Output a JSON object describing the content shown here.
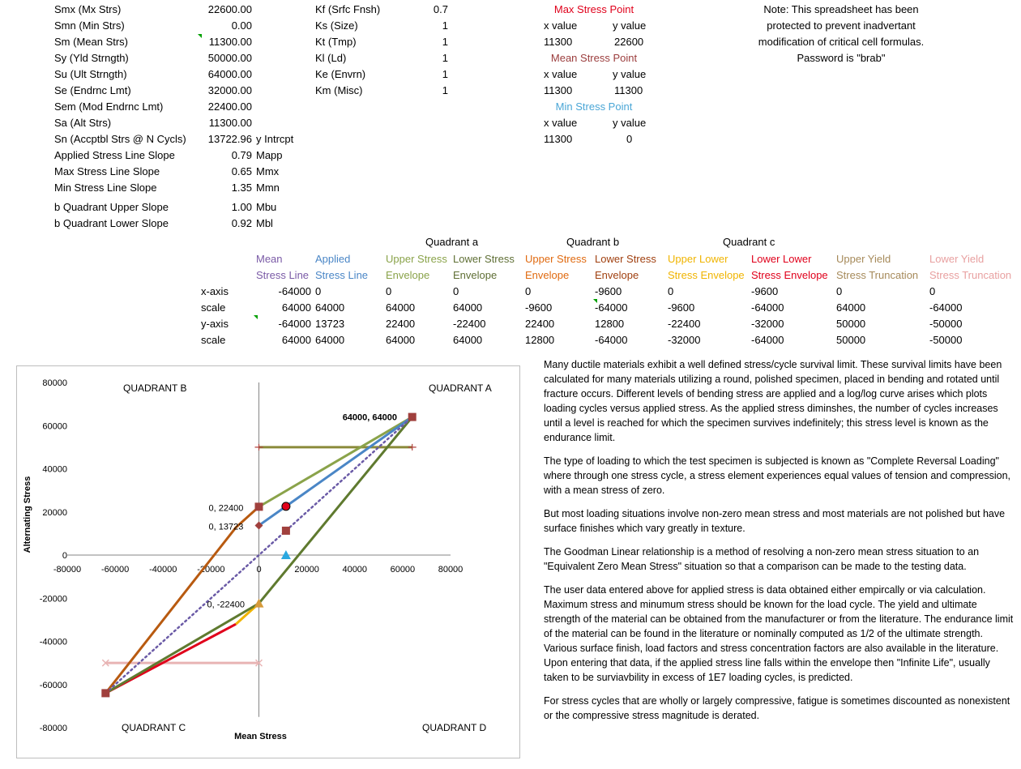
{
  "params_left": [
    {
      "label": "Smx (Mx Strs)",
      "value": "22600.00"
    },
    {
      "label": "Smn (Min Strs)",
      "value": "0.00"
    },
    {
      "label": "Sm (Mean Strs)",
      "value": "11300.00"
    },
    {
      "label": "Sy (Yld Strngth)",
      "value": "50000.00"
    },
    {
      "label": "Su (Ult Strngth)",
      "value": "64000.00"
    },
    {
      "label": "Se (Endrnc Lmt)",
      "value": "32000.00"
    },
    {
      "label": "Sem (Mod Endrnc Lmt)",
      "value": "22400.00"
    },
    {
      "label": "Sa (Alt Strs)",
      "value": "11300.00"
    },
    {
      "label": "Sn (Accptbl Strs @ N  Cycls)",
      "value": "13722.96",
      "suffix": "y Intrcpt"
    }
  ],
  "slopes": [
    {
      "label": "Applied Stress Line Slope",
      "value": "0.79",
      "suffix": "Mapp"
    },
    {
      "label": "Max Stress Line Slope",
      "value": "0.65",
      "suffix": "Mmx"
    },
    {
      "label": "Min Stress Line Slope",
      "value": "1.35",
      "suffix": "Mmn"
    },
    {
      "label": "b Quadrant Upper Slope",
      "value": "1.00",
      "suffix": "Mbu"
    },
    {
      "label": "b Quadrant Lower Slope",
      "value": "0.92",
      "suffix": "Mbl"
    }
  ],
  "factors": [
    {
      "label": "Kf (Srfc Fnsh)",
      "value": "0.7"
    },
    {
      "label": "Ks (Size)",
      "value": "1"
    },
    {
      "label": "Kt (Tmp)",
      "value": "1"
    },
    {
      "label": "Kl (Ld)",
      "value": "1"
    },
    {
      "label": "Ke (Envrn)",
      "value": "1"
    },
    {
      "label": "Km (Misc)",
      "value": "1"
    }
  ],
  "points": {
    "max": {
      "title": "Max Stress Point",
      "x": "11300",
      "y": "22600"
    },
    "mean": {
      "title": "Mean Stress Point",
      "x": "11300",
      "y": "11300"
    },
    "min": {
      "title": "Min Stress Point",
      "x": "11300",
      "y": "0"
    },
    "x_label": "x value",
    "y_label": "y value"
  },
  "note": "Note:  This spreadsheet has been protected to prevent inadvertant modification of critical cell formulas.  Password is \"brab\"",
  "quadrants": {
    "a": "Quadrant a",
    "b": "Quadrant b",
    "c": "Quadrant c"
  },
  "table": {
    "row_labels": [
      "x-axis",
      "scale",
      "y-axis",
      "scale"
    ],
    "columns": [
      {
        "h1": "Mean",
        "h2": "Stress Line",
        "color": "#7a5aa6",
        "vals": [
          "-64000",
          "64000",
          "-64000",
          "64000"
        ]
      },
      {
        "h1": "Applied",
        "h2": "Stress Line",
        "color": "#4a86c6",
        "vals": [
          "0",
          "64000",
          "13723",
          "64000"
        ]
      },
      {
        "h1": "Upper Stress",
        "h2": "Envelope",
        "color": "#8aa34a",
        "vals": [
          "0",
          "64000",
          "22400",
          "64000"
        ]
      },
      {
        "h1": "Lower Stress",
        "h2": "Envelope",
        "color": "#5f6f35",
        "vals": [
          "0",
          "64000",
          "-22400",
          "64000"
        ]
      },
      {
        "h1": "Upper Stress",
        "h2": "Envelope",
        "color": "#e06a10",
        "vals": [
          "0",
          "-9600",
          "22400",
          "12800"
        ]
      },
      {
        "h1": "Lower Stress",
        "h2": "Envelope",
        "color": "#a04010",
        "vals": [
          "-9600",
          "-64000",
          "12800",
          "-64000"
        ]
      },
      {
        "h1": "Upper Lower",
        "h2": "Stress Envelope",
        "color": "#f0b400",
        "vals": [
          "0",
          "-9600",
          "-22400",
          "-32000"
        ]
      },
      {
        "h1": "Lower Lower",
        "h2": "Stress Envelope",
        "color": "#e0001b",
        "vals": [
          "-9600",
          "-64000",
          "-32000",
          "-64000"
        ]
      },
      {
        "h1": "Upper Yield",
        "h2": "Stress Truncation",
        "color": "#a68a5a",
        "vals": [
          "0",
          "64000",
          "50000",
          "50000"
        ]
      },
      {
        "h1": "Lower Yield",
        "h2": "Stress Truncation",
        "color": "#e8a0a0",
        "vals": [
          "0",
          "-64000",
          "-50000",
          "-50000"
        ]
      }
    ]
  },
  "paragraphs": [
    "Many ductile materials exhibit a well defined stress/cycle survival limit.  These survival limits have been calculated for many materials utilizing a round, polished specimen, placed in bending and rotated until fracture occurs.  Different levels of bending stress are applied and a log/log curve arises which plots loading cycles versus applied stress.  As the applied stress diminshes, the number of cycles increases until a level is reached for which the specimen survives indefinitely; this stress level is known as the endurance limit.",
    "The type of loading to which the test specimen is subjected is known as \"Complete Reversal Loading\" where through one stress cycle, a stress element experiences equal values of tension and compression, with a mean stress of zero.",
    "But most loading situations involve non-zero mean stress and most materials are not polished but have surface finishes which vary greatly in texture.",
    "The Goodman Linear relationship is a method of resolving a non-zero mean stress situation to an \"Equivalent Zero Mean  Stress\" situation so that a comparison can be made to the testing data.",
    "The user data entered above for applied stress is data obtained either empircally or via calculation.  Maximum stress and minumum stress should be known for the load cycle.  The yield and ultimate strength of the material can be obtained from the manufacturer or from the literature.  The endurance limit of the material can be found in the literature or nominally computed as 1/2 of the ultimate strength.  Various surface finish, load factors and stress concentration factors are also available in the literature.  Upon entering that data, if the applied stress line falls within the envelope then \"Infinite Life\", usually taken to be surviavbility in excess of 1E7 loading cycles, is predicted.",
    "For stress cycles that are wholly or largely compressive, fatigue is sometimes discounted as nonexistent or the compressive stress magnitude is derated."
  ],
  "chart_data": {
    "type": "line",
    "xlabel": "Mean Stress",
    "ylabel": "Alternating Stress",
    "xlim": [
      -80000,
      80000
    ],
    "ylim": [
      -80000,
      80000
    ],
    "xticks": [
      -80000,
      -60000,
      -40000,
      -20000,
      0,
      20000,
      40000,
      60000,
      80000
    ],
    "yticks": [
      -80000,
      -60000,
      -40000,
      -20000,
      0,
      20000,
      40000,
      60000,
      80000
    ],
    "quadrant_labels": {
      "b": "QUADRANT B",
      "a": "QUADRANT A",
      "c": "QUADRANT C",
      "d": "QUADRANT D"
    },
    "series": [
      {
        "color": "#e8b4b4",
        "points": [
          [
            -64000,
            -50000
          ],
          [
            0,
            -50000
          ]
        ]
      },
      {
        "color": "#8a8a3a",
        "points": [
          [
            0,
            50000
          ],
          [
            64000,
            50000
          ]
        ]
      },
      {
        "color": "#e0001b",
        "points": [
          [
            -9600,
            -32000
          ],
          [
            -64000,
            -64000
          ]
        ]
      },
      {
        "color": "#f0b400",
        "points": [
          [
            0,
            -22400
          ],
          [
            -9600,
            -32000
          ]
        ]
      },
      {
        "color": "#b85a10",
        "points": [
          [
            -64000,
            -64000
          ],
          [
            -9600,
            12800
          ],
          [
            0,
            22400
          ]
        ]
      },
      {
        "color": "#5f7a2f",
        "points": [
          [
            -64000,
            -64000
          ],
          [
            0,
            -22400
          ],
          [
            64000,
            64000
          ]
        ]
      },
      {
        "color": "#8aa34a",
        "points": [
          [
            0,
            22400
          ],
          [
            64000,
            64000
          ]
        ]
      },
      {
        "color": "#4a86c6",
        "points": [
          [
            0,
            13723
          ],
          [
            64000,
            64000
          ]
        ]
      },
      {
        "color": "#6a5aa6",
        "dashed": true,
        "points": [
          [
            -64000,
            -64000
          ],
          [
            64000,
            64000
          ]
        ]
      }
    ],
    "markers": [
      {
        "x": 64000,
        "y": 64000,
        "shape": "square",
        "color": "#a0403d"
      },
      {
        "x": 0,
        "y": 22400,
        "shape": "square",
        "color": "#a0403d"
      },
      {
        "x": 0,
        "y": 13723,
        "shape": "diamond",
        "color": "#a0403d"
      },
      {
        "x": 11300,
        "y": 11300,
        "shape": "square",
        "color": "#a0403d"
      },
      {
        "x": -64000,
        "y": -64000,
        "shape": "square",
        "color": "#a0403d"
      },
      {
        "x": 11300,
        "y": 22600,
        "shape": "circle",
        "color": "#e0001b"
      },
      {
        "x": 11300,
        "y": 0,
        "shape": "triangle",
        "color": "#2aa8e0"
      },
      {
        "x": 0,
        "y": -22400,
        "shape": "triangle",
        "color": "#d69a3a"
      }
    ],
    "data_labels": [
      {
        "x": 64000,
        "y": 64000,
        "text": "64000, 64000"
      },
      {
        "x": 0,
        "y": 22400,
        "text": "0, 22400"
      },
      {
        "x": 0,
        "y": 13723,
        "text": "0, 13723"
      },
      {
        "x": 0,
        "y": -22400,
        "text": "0, -22400"
      }
    ]
  }
}
